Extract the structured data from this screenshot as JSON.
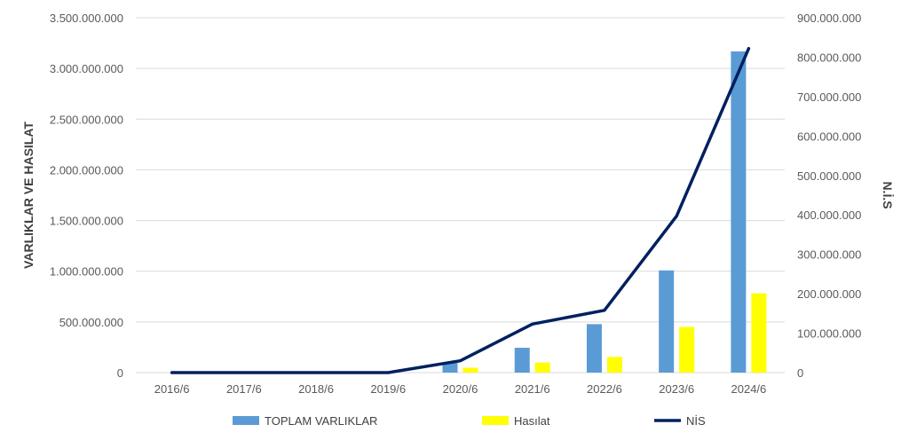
{
  "chart_data": {
    "type": "bar",
    "categories": [
      "2016/6",
      "2017/6",
      "2018/6",
      "2019/6",
      "2020/6",
      "2021/6",
      "2022/6",
      "2023/6",
      "2024/6"
    ],
    "series": [
      {
        "name": "TOPLAM VARLIKLAR",
        "type": "bar",
        "axis": "left",
        "color": "#5b9bd5",
        "values": [
          0,
          0,
          0,
          0,
          95000000,
          245000000,
          478000000,
          1008000000,
          3168000000
        ]
      },
      {
        "name": "Hasılat",
        "type": "bar",
        "axis": "left",
        "color": "#ffff00",
        "values": [
          0,
          0,
          0,
          0,
          48000000,
          100000000,
          155000000,
          450000000,
          782000000
        ]
      },
      {
        "name": "NİS",
        "type": "line",
        "axis": "right",
        "color": "#002060",
        "values": [
          0,
          0,
          0,
          0,
          30000000,
          123000000,
          158000000,
          397000000,
          822000000
        ]
      }
    ],
    "ylabel": "VARLIKLAR VE HASILAT",
    "y2label": "N.İ.S",
    "ylim": [
      0,
      3500000000
    ],
    "y2lim": [
      0,
      900000000
    ],
    "yticks": [
      "0",
      "500.000.000",
      "1.000.000.000",
      "1.500.000.000",
      "2.000.000.000",
      "2.500.000.000",
      "3.000.000.000",
      "3.500.000.000"
    ],
    "y2ticks": [
      "0",
      "100.000.000",
      "200.000.000",
      "300.000.000",
      "400.000.000",
      "500.000.000",
      "600.000.000",
      "700.000.000",
      "800.000.000",
      "900.000.000"
    ],
    "grid": true,
    "legend": "bottom"
  }
}
